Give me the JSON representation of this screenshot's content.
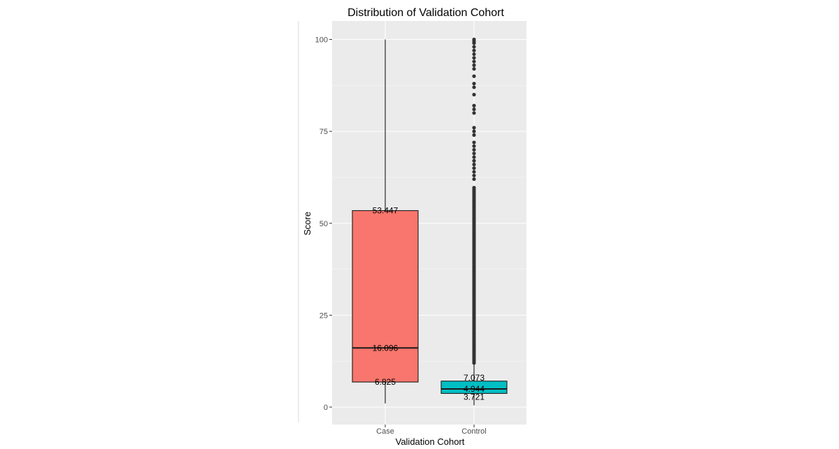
{
  "chart_data": {
    "type": "box",
    "title": "Distribution of Validation  Cohort",
    "xlabel": "Validation  Cohort",
    "ylabel": "Score",
    "ylim": [
      -4,
      104
    ],
    "yticks": [
      0,
      25,
      50,
      75,
      100
    ],
    "grid": true,
    "categories": [
      "Case",
      "Control"
    ],
    "series": [
      {
        "category": "Case",
        "color": "#f8766d",
        "min": 1,
        "q1": 6.825,
        "median": 16.096,
        "q3": 53.447,
        "max": 100,
        "q1_label": "6.825",
        "median_label": "16.096",
        "q3_label": "53.447",
        "outliers": []
      },
      {
        "category": "Control",
        "color": "#00bfc4",
        "min": 0.5,
        "q1": 3.721,
        "median": 4.944,
        "q3": 7.073,
        "max": 12,
        "q1_label": "3.721",
        "median_label": "4.944",
        "q3_label": "7.073",
        "outliers_dense_range": [
          12,
          60
        ],
        "outliers": [
          62,
          63,
          64,
          65,
          66,
          67,
          68,
          69,
          70,
          71,
          72,
          74,
          75,
          76,
          80,
          81,
          82,
          85,
          87,
          88,
          90,
          92,
          93,
          94,
          95,
          96,
          97,
          98,
          99,
          99.5,
          100
        ]
      }
    ]
  }
}
